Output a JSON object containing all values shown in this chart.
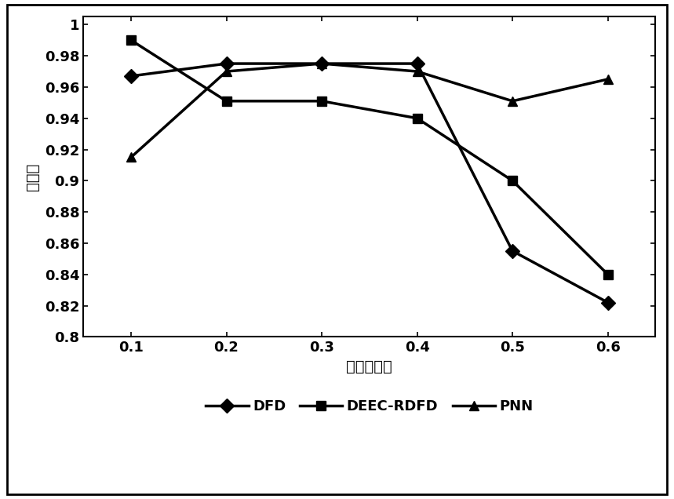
{
  "x": [
    0.1,
    0.2,
    0.3,
    0.4,
    0.5,
    0.6
  ],
  "DFD": [
    0.967,
    0.975,
    0.975,
    0.975,
    0.855,
    0.822
  ],
  "DEEC_RDFD": [
    0.99,
    0.951,
    0.951,
    0.94,
    0.9,
    0.84
  ],
  "PNN": [
    0.915,
    0.97,
    0.975,
    0.97,
    0.951,
    0.965
  ],
  "xlabel": "节点故障率",
  "ylabel": "检测率",
  "ylim": [
    0.8,
    1.005
  ],
  "yticks": [
    0.8,
    0.82,
    0.84,
    0.86,
    0.88,
    0.9,
    0.92,
    0.94,
    0.96,
    0.98,
    1.0
  ],
  "ytick_labels": [
    "0.8",
    "0.82",
    "0.84",
    "0.86",
    "0.88",
    "0.9",
    "0.92",
    "0.94",
    "0.96",
    "0.98",
    "1"
  ],
  "xticks": [
    0.1,
    0.2,
    0.3,
    0.4,
    0.5,
    0.6
  ],
  "xtick_labels": [
    "0.1",
    "0.2",
    "0.3",
    "0.4",
    "0.5",
    "0.6"
  ],
  "line_color": "#000000",
  "legend_labels": [
    "DFD",
    "DEEC-RDFD",
    "PNN"
  ],
  "marker_DFD": "D",
  "marker_DEEC": "s",
  "marker_PNN": "^",
  "linewidth": 2.5,
  "markersize": 9,
  "axis_fontsize": 14,
  "tick_fontsize": 13,
  "legend_fontsize": 13
}
